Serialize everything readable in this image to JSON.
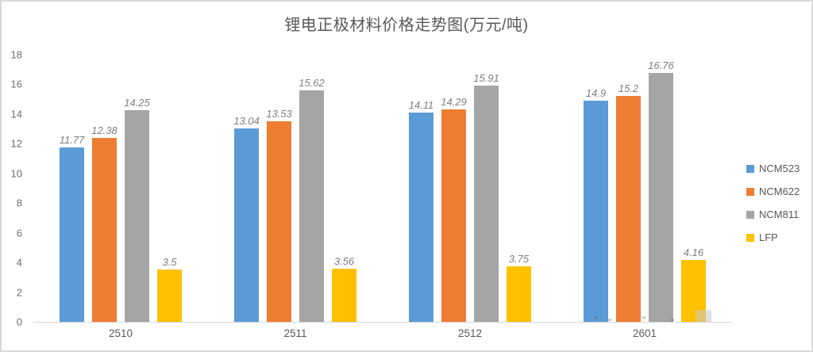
{
  "chart_data": {
    "type": "bar",
    "title": "锂电正极材料价格走势图(万元/吨)",
    "categories": [
      "2510",
      "2511",
      "2512",
      "2601"
    ],
    "series": [
      {
        "name": "NCM523",
        "color": "#5B9BD5",
        "values": [
          11.77,
          13.04,
          14.11,
          14.9
        ]
      },
      {
        "name": "NCM622",
        "color": "#ED7D31",
        "values": [
          12.38,
          13.53,
          14.29,
          15.2
        ]
      },
      {
        "name": "NCM811",
        "color": "#A5A5A5",
        "values": [
          14.25,
          15.62,
          15.91,
          16.76
        ]
      },
      {
        "name": "LFP",
        "color": "#FFC000",
        "values": [
          3.5,
          3.56,
          3.75,
          4.16
        ]
      }
    ],
    "xlabel": "",
    "ylabel": "",
    "ylim": [
      0,
      18
    ],
    "yticks": [
      0,
      2,
      4,
      6,
      8,
      10,
      12,
      14,
      16,
      18
    ],
    "grid": false,
    "legend_position": "right",
    "data_labels": true,
    "data_label_style": "italic"
  },
  "colors": {
    "title_text": "#595959",
    "axis_text": "#6e6e6e",
    "data_label_text": "#7f7f7f",
    "axis_line": "#d9d9d9",
    "frame_border": "#d9d9d9",
    "background": "#ffffff"
  }
}
